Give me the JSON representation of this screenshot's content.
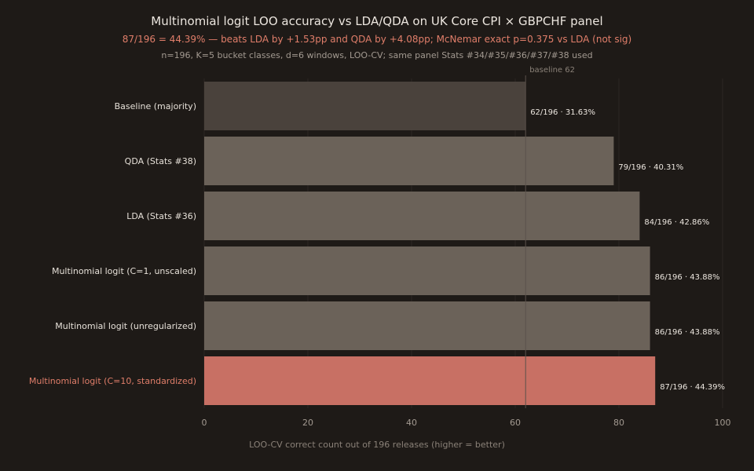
{
  "chart_data": {
    "type": "bar",
    "orientation": "horizontal",
    "title": "Multinomial logit LOO accuracy vs LDA/QDA on UK Core CPI × GBPCHF panel",
    "subtitle": "87/196 = 44.39% — beats LDA by +1.53pp and QDA by +4.08pp; McNemar exact p=0.375 vs LDA (not sig)",
    "note": "n=196, K=5 bucket classes, d=6 windows, LOO-CV; same panel Stats #34/#35/#36/#37/#38 used",
    "xlabel": "LOO-CV correct count out of 196 releases (higher = better)",
    "ylabel": "",
    "xlim": [
      0,
      100
    ],
    "xticks": [
      0,
      20,
      40,
      60,
      80,
      100
    ],
    "grid": true,
    "reference_line": {
      "value": 62,
      "label": "baseline 62"
    },
    "categories": [
      "Baseline (majority)",
      "QDA (Stats #38)",
      "LDA (Stats #36)",
      "Multinomial logit (C=1, unscaled)",
      "Multinomial logit (unregularized)",
      "Multinomial logit (C=10, standardized)"
    ],
    "values": [
      62,
      79,
      84,
      86,
      86,
      87
    ],
    "value_labels": [
      "62/196 · 31.63%",
      "79/196 · 40.31%",
      "84/196 · 42.86%",
      "86/196 · 43.88%",
      "86/196 · 43.88%",
      "87/196 · 44.39%"
    ],
    "highlight_index": 5,
    "colors": {
      "baseline": "#4a423c",
      "bar": "#6b6259",
      "highlight": "#c87064",
      "background": "#1e1a17",
      "accent_text": "#e07e6a"
    }
  }
}
